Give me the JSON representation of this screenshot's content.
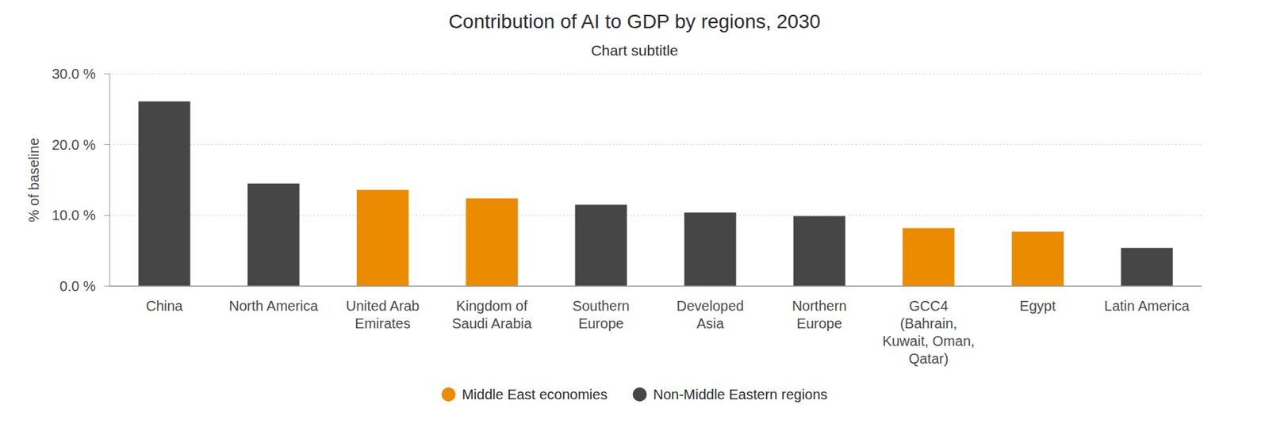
{
  "chart_data": {
    "type": "bar",
    "title": "Contribution of AI to GDP by regions, 2030",
    "subtitle": "Chart subtitle",
    "y_label": "% of baseline",
    "categories": [
      "China",
      "North America",
      "United Arab Emirates",
      "Kingdom of Saudi Arabia",
      "Southern Europe",
      "Developed Asia",
      "Northern Europe",
      "GCC4 (Bahrain, Kuwait, Oman, Qatar)",
      "Egypt",
      "Latin America"
    ],
    "series": [
      {
        "name": "Middle East economies",
        "color": "#eb8c00",
        "values": [
          null,
          null,
          13.6,
          12.4,
          null,
          null,
          null,
          8.2,
          7.7,
          null
        ]
      },
      {
        "name": "Non-Middle Eastern regions",
        "color": "#464646",
        "values": [
          26.1,
          14.5,
          null,
          null,
          11.5,
          10.4,
          9.9,
          null,
          null,
          5.4
        ]
      }
    ],
    "stacked": true,
    "ylim": [
      0,
      30
    ],
    "yticks": [
      {
        "value": 0,
        "label": "0.0 %"
      },
      {
        "value": 10,
        "label": "10.0 %"
      },
      {
        "value": 20,
        "label": "20.0 %"
      },
      {
        "value": 30,
        "label": "30.0 %"
      }
    ],
    "grid": true,
    "legend": "bottom"
  }
}
